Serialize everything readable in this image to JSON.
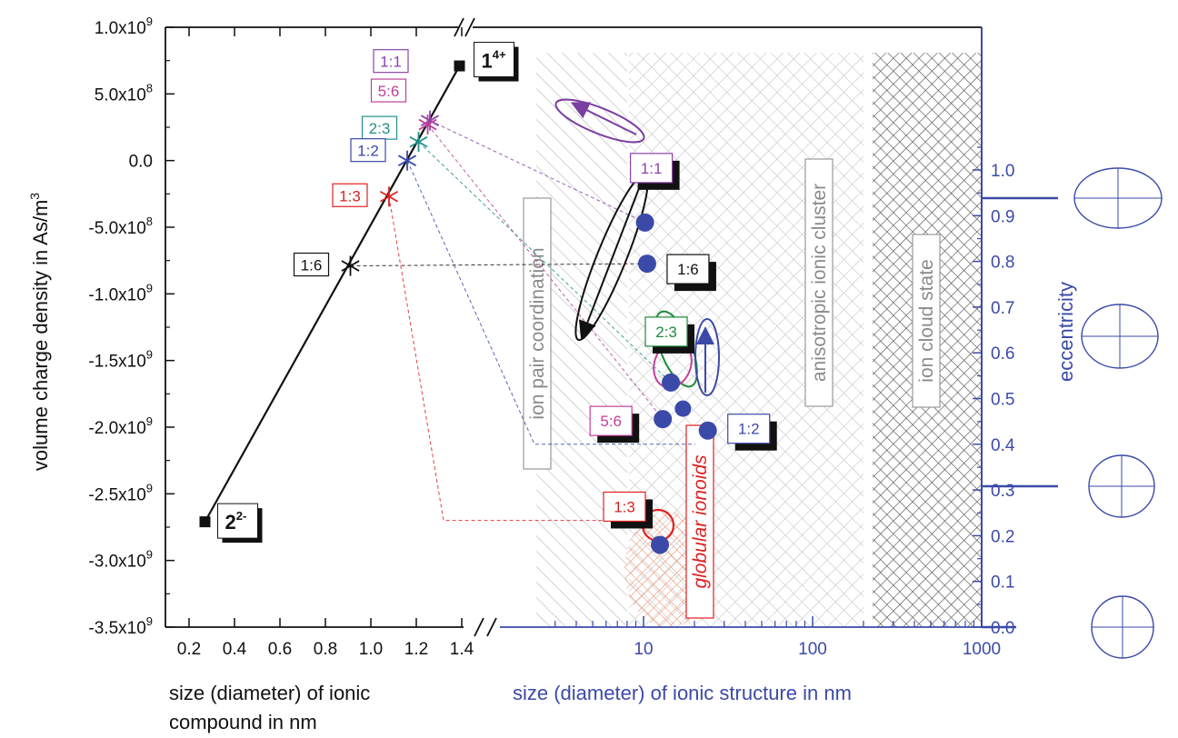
{
  "chart_data": {
    "type": "scatter",
    "left_panel": {
      "xlabel_line1": "size (diameter) of ionic",
      "xlabel_line2": "compound in nm",
      "ylabel": "volume charge density in As/m",
      "ylabel_sup": "3",
      "xlim": [
        0.2,
        1.45
      ],
      "ylim": [
        -3500000000,
        1000000000
      ],
      "x_ticks": [
        "0.2",
        "0.4",
        "0.6",
        "0.8",
        "1.0",
        "1.2",
        "1.4"
      ],
      "y_ticks": [
        {
          "value": 1000000000,
          "mant": "1.0x10",
          "exp": "9"
        },
        {
          "value": 500000000,
          "mant": "5.0x10",
          "exp": "8"
        },
        {
          "value": 0,
          "mant": "0.0",
          "exp": ""
        },
        {
          "value": -500000000,
          "mant": "-5.0x10",
          "exp": "8"
        },
        {
          "value": -1000000000,
          "mant": "-1.0x10",
          "exp": "9"
        },
        {
          "value": -1500000000,
          "mant": "-1.5x10",
          "exp": "9"
        },
        {
          "value": -2000000000,
          "mant": "-2.0x10",
          "exp": "9"
        },
        {
          "value": -2500000000,
          "mant": "-2.5x10",
          "exp": "9"
        },
        {
          "value": -3000000000,
          "mant": "-3.0x10",
          "exp": "9"
        },
        {
          "value": -3500000000,
          "mant": "-3.5x10",
          "exp": "9"
        }
      ],
      "endpoints": [
        {
          "x": 1.39,
          "y": 710000000,
          "label": "1",
          "sup": "4+"
        },
        {
          "x": 0.27,
          "y": -2710000000,
          "label": "2",
          "sup": "2-"
        }
      ],
      "points": [
        {
          "label": "1:1",
          "x": 1.26,
          "y": 300000000,
          "color": "#8e44ad"
        },
        {
          "label": "5:6",
          "x": 1.25,
          "y": 270000000,
          "color": "#c0409a"
        },
        {
          "label": "2:3",
          "x": 1.21,
          "y": 140000000,
          "color": "#20908a"
        },
        {
          "label": "1:2",
          "x": 1.16,
          "y": 0,
          "color": "#3b4aa8"
        },
        {
          "label": "1:3",
          "x": 1.08,
          "y": -270000000,
          "color": "#e02020"
        },
        {
          "label": "1:6",
          "x": 0.91,
          "y": -790000000,
          "color": "#111111"
        }
      ]
    },
    "right_panel": {
      "xlabel": "size (diameter) of ionic structure in nm",
      "ylabel": "eccentricity",
      "x_scale": "log",
      "xlim": [
        2,
        1000
      ],
      "ylim": [
        0,
        1.05
      ],
      "x_ticks": [
        "10",
        "100",
        "1000"
      ],
      "y_ticks": [
        "0.0",
        "0.1",
        "0.2",
        "0.3",
        "0.4",
        "0.5",
        "0.6",
        "0.7",
        "0.8",
        "0.9",
        "1.0"
      ],
      "regions": [
        "ion pair coordination",
        "anisotropic ionic cluster",
        "ion cloud state"
      ],
      "region_note": "globular ionoids",
      "points": [
        {
          "label": "1:1",
          "x_start": 10.2,
          "e_start": 0.885,
          "x_end": 3.8,
          "e_end": 0.91,
          "color": "#8e44ad"
        },
        {
          "label": "1:6",
          "x_start": 10.5,
          "e_end": 0.52,
          "e_start": 0.795,
          "x_end": 4.3,
          "color": "#111111"
        },
        {
          "label": "2:3",
          "x_start": 14.5,
          "e_start": 0.535,
          "x_end": 14.5,
          "e_end": 0.535,
          "color": "#1e8a3a"
        },
        {
          "label": "5:6",
          "x_start": 13.0,
          "e_start": 0.455,
          "x_end": 15.5,
          "e_end": 0.47,
          "color": "#c0409a"
        },
        {
          "label": "1:2",
          "x_start": 24.0,
          "e_start": 0.43,
          "x_end": 24.5,
          "e_end": 0.52,
          "color": "#3b4aa8"
        },
        {
          "label": "1:3",
          "x_start": 12.5,
          "e_start": 0.18,
          "x_end": 12.5,
          "e_end": 0.18,
          "color": "#e02020"
        }
      ]
    }
  }
}
